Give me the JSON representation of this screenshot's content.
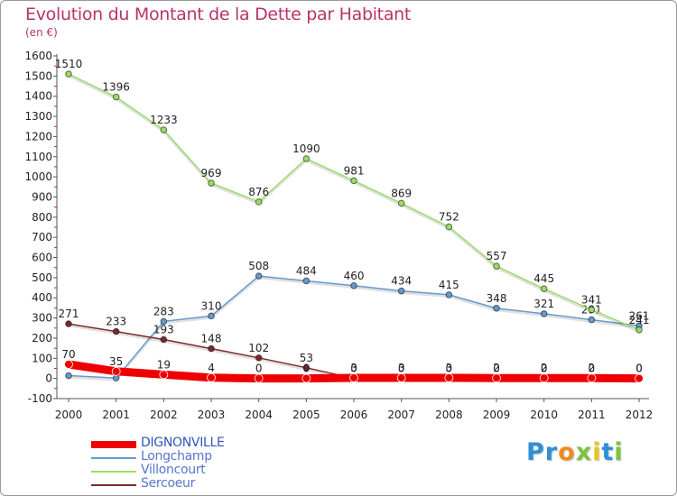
{
  "title": "Evolution du Montant de la Dette par Habitant",
  "unit_label": "(en €)",
  "brand": {
    "letters": [
      "P",
      "r",
      "o",
      "x",
      "i",
      "t",
      "i"
    ],
    "colors": [
      "#2f8fd8",
      "#2f8fd8",
      "#f28a1e",
      "#7cc242",
      "#e8c51e",
      "#2f8fd8",
      "#7cc242"
    ]
  },
  "chart_data": {
    "type": "line",
    "title": "Evolution du Montant de la Dette par Habitant",
    "ylabel": "(en €)",
    "xlabel": "",
    "x": [
      "2000",
      "2001",
      "2002",
      "2003",
      "2004",
      "2005",
      "2006",
      "2007",
      "2008",
      "2009",
      "2010",
      "2011",
      "2012"
    ],
    "ylim": [
      -100,
      1600
    ],
    "yticks": [
      "-100",
      "0",
      "100",
      "200",
      "300",
      "400",
      "500",
      "600",
      "700",
      "800",
      "900",
      "1000",
      "1100",
      "1200",
      "1300",
      "1400",
      "1500",
      "1600"
    ],
    "grid": false,
    "legend_position": "bottom-left",
    "series": [
      {
        "name": "DIGNONVILLE",
        "color": "#ee0000",
        "values": [
          70,
          35,
          19,
          4,
          0,
          0,
          3,
          3,
          3,
          2,
          2,
          2,
          0
        ],
        "labels": [
          "70",
          "35",
          "19",
          "4",
          "0",
          "0",
          "3",
          "3",
          "3",
          "2",
          "2",
          "2",
          "0"
        ]
      },
      {
        "name": "Longchamp",
        "color": "#6699cc",
        "values": [
          14,
          2,
          283,
          310,
          508,
          484,
          460,
          434,
          415,
          348,
          321,
          291,
          261
        ],
        "labels": [
          "",
          "",
          "283",
          "310",
          "508",
          "484",
          "460",
          "434",
          "415",
          "348",
          "321",
          "291",
          "261"
        ]
      },
      {
        "name": "Villoncourt",
        "color": "#99dd66",
        "values": [
          1510,
          1396,
          1233,
          969,
          876,
          1090,
          981,
          869,
          752,
          557,
          445,
          341,
          241
        ],
        "labels": [
          "1510",
          "1396",
          "1233",
          "969",
          "876",
          "1090",
          "981",
          "869",
          "752",
          "557",
          "445",
          "341",
          "241"
        ]
      },
      {
        "name": "Sercoeur",
        "color": "#7a2a2a",
        "values": [
          271,
          233,
          193,
          148,
          102,
          53,
          0,
          0,
          0,
          0,
          0,
          0,
          0
        ],
        "labels": [
          "271",
          "233",
          "193",
          "148",
          "102",
          "53",
          "0",
          "0",
          "0",
          "0",
          "0",
          "0",
          "0"
        ]
      }
    ]
  }
}
